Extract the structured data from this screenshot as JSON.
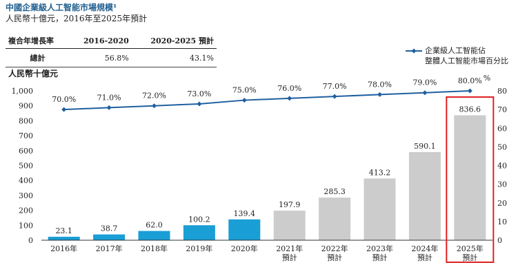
{
  "title": "中國企業級人工智能市場規模¹",
  "subtitle": "人民幣十億元，2016年至2025年預計",
  "cagr_table": {
    "headers": [
      "複合年增長率",
      "2016-2020",
      "2020-2025 預計"
    ],
    "row_label": "總計",
    "values": [
      "56.8%",
      "43.1%"
    ]
  },
  "chart_data": {
    "type": "bar",
    "ylabel_left": "人民幣十億元",
    "ylabel_right": "%",
    "ylim_left": [
      0,
      1000
    ],
    "yticks_left": [
      "0",
      "100",
      "200",
      "300",
      "400",
      "500",
      "600",
      "700",
      "800",
      "900",
      "1,000"
    ],
    "ylim_right": [
      0,
      80
    ],
    "yticks_right": [
      "0",
      "10",
      "20",
      "30",
      "40",
      "50",
      "60",
      "70",
      "80"
    ],
    "categories": [
      [
        "2016年"
      ],
      [
        "2017年"
      ],
      [
        "2018年"
      ],
      [
        "2019年"
      ],
      [
        "2020年"
      ],
      [
        "2021年",
        "預計"
      ],
      [
        "2022年",
        "預計"
      ],
      [
        "2023年",
        "預計"
      ],
      [
        "2024年",
        "預計"
      ],
      [
        "2025年",
        "預計"
      ]
    ],
    "bars": {
      "values": [
        23.1,
        38.7,
        62.0,
        100.2,
        139.4,
        197.9,
        285.3,
        413.2,
        590.1,
        836.6
      ],
      "labels": [
        "23.1",
        "38.7",
        "62.0",
        "100.2",
        "139.4",
        "197.9",
        "285.3",
        "413.2",
        "590.1",
        "836.6"
      ],
      "colors": [
        "#1a9ed6",
        "#1a9ed6",
        "#1a9ed6",
        "#1a9ed6",
        "#1a9ed6",
        "#cccccc",
        "#cccccc",
        "#cccccc",
        "#cccccc",
        "#cccccc"
      ]
    },
    "line": {
      "name": "企業級人工智能佔整體人工智能市場百分比",
      "legend_lines": [
        "企業級人工智能佔",
        "整體人工智能市場百分比"
      ],
      "values": [
        70.0,
        71.0,
        72.0,
        73.0,
        75.0,
        76.0,
        77.0,
        78.0,
        79.0,
        80.0
      ],
      "labels": [
        "70.0%",
        "71.0%",
        "72.0%",
        "73.0%",
        "75.0%",
        "76.0%",
        "77.0%",
        "78.0%",
        "79.0%",
        "80.0%"
      ],
      "color": "#1f5f9f"
    },
    "highlight_category_index": 9,
    "highlight_color": "#e02020"
  }
}
